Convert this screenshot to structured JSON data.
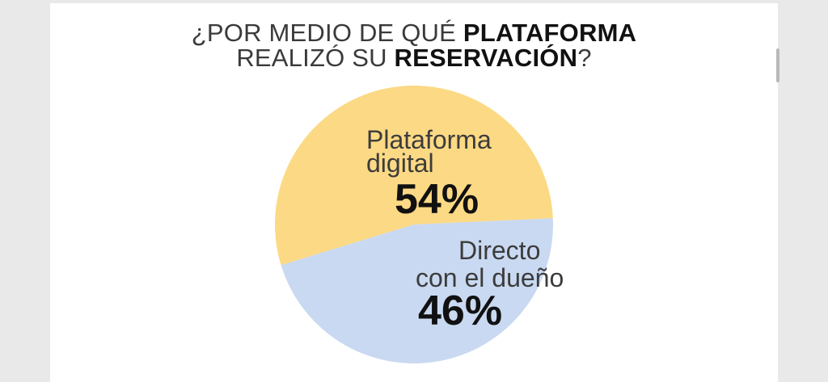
{
  "title": {
    "line1_normal": "¿POR MEDIO DE QUÉ ",
    "line1_bold": "PLATAFORMA",
    "line2_normal": "REALIZÓ SU ",
    "line2_bold": "RESERVACIÓN",
    "line2_end": "?"
  },
  "chart_data": {
    "type": "pie",
    "title": "¿POR MEDIO DE QUÉ PLATAFORMA REALIZÓ SU RESERVACIÓN?",
    "slices": [
      {
        "label_lines": [
          "Plataforma",
          "digital"
        ],
        "value": 54,
        "value_label": "54%",
        "color": "#fcd984"
      },
      {
        "label_lines": [
          "Directo",
          "con el dueño"
        ],
        "value": 46,
        "value_label": "46%",
        "color": "#c9d9f1"
      }
    ]
  },
  "colors": {
    "page_bg": "#ffffff",
    "outer_bg": "#e9e9e9",
    "scrollbar": "#b9b9b9"
  }
}
